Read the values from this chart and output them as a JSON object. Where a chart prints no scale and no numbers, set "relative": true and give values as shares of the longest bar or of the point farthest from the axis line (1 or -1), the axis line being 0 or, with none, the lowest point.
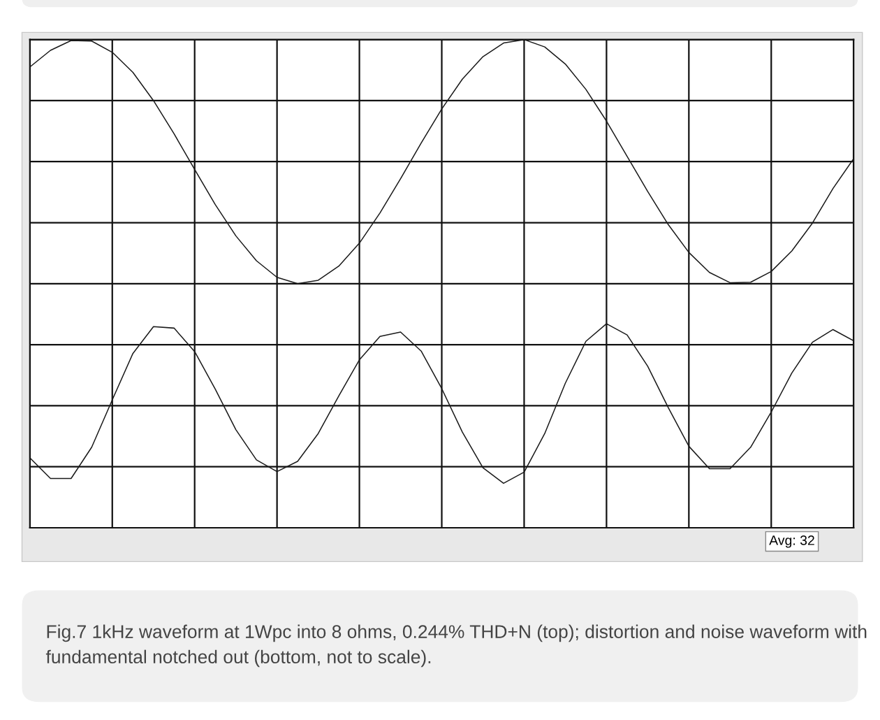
{
  "chart_data": {
    "type": "line",
    "relative": true,
    "grid": true,
    "marker": "none",
    "line_style": "solid",
    "categories": [
      null,
      null,
      null,
      null,
      null,
      null,
      null,
      null,
      null,
      null,
      null,
      null,
      null,
      null,
      null,
      null,
      null,
      null,
      null,
      null,
      null,
      null,
      null,
      null,
      null,
      null,
      null,
      null,
      null,
      null,
      null,
      null,
      null,
      null,
      null,
      null,
      null,
      null,
      null,
      null,
      null
    ],
    "series": [
      {
        "color": "#1a1a1a",
        "values": [
          0.944,
          0.978,
          0.998,
          0.997,
          0.974,
          0.933,
          0.875,
          0.807,
          0.734,
          0.662,
          0.598,
          0.547,
          0.513,
          0.5,
          0.507,
          0.536,
          0.583,
          0.645,
          0.715,
          0.788,
          0.858,
          0.919,
          0.965,
          0.993,
          1.0,
          0.985,
          0.95,
          0.898,
          0.833,
          0.761,
          0.689,
          0.621,
          0.564,
          0.523,
          0.502,
          0.503,
          0.525,
          0.567,
          0.624,
          0.695,
          0.756
        ]
      },
      {
        "color": "#1a1a1a",
        "values": [
          0.143,
          0.101,
          0.101,
          0.165,
          0.262,
          0.357,
          0.412,
          0.409,
          0.361,
          0.284,
          0.201,
          0.139,
          0.115,
          0.136,
          0.193,
          0.27,
          0.344,
          0.392,
          0.401,
          0.362,
          0.285,
          0.196,
          0.123,
          0.091,
          0.114,
          0.193,
          0.296,
          0.382,
          0.418,
          0.395,
          0.331,
          0.246,
          0.167,
          0.121,
          0.121,
          0.165,
          0.237,
          0.317,
          0.38,
          0.406,
          0.383
        ]
      }
    ],
    "annotations": [
      "Avg: 32",
      "Fig.7 1kHz waveform at 1Wpc into 8 ohms, 0.244% THD+N (top); distortion and noise waveform with fundamental notched out (bottom, not to scale)."
    ]
  }
}
